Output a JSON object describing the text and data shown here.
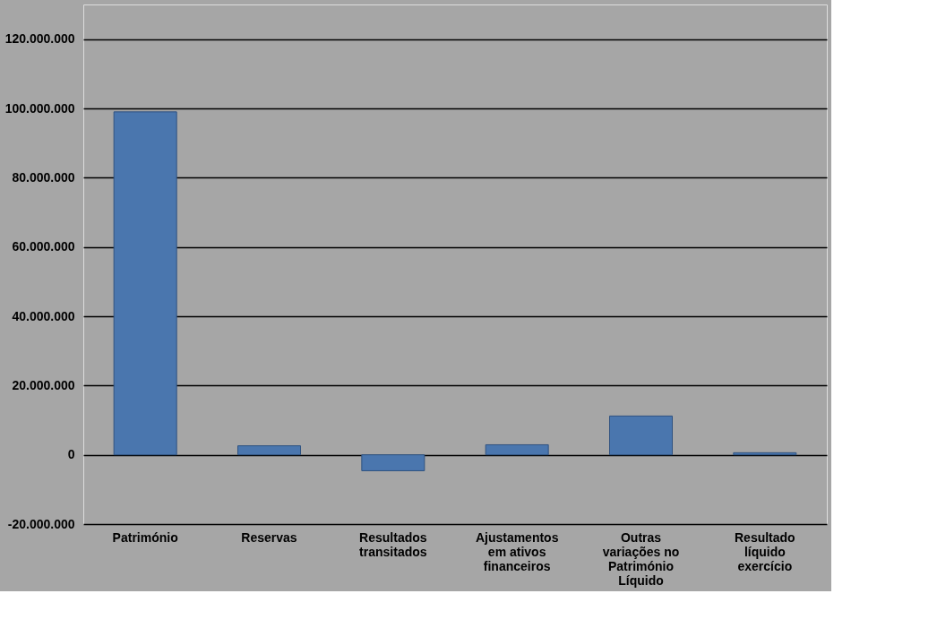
{
  "chart_data": {
    "type": "bar",
    "categories": [
      "Património",
      "Reservas",
      "Resultados transitados",
      "Ajustamentos em ativos financeiros",
      "Outras variações no Património Líquido",
      "Resultado líquido exercício"
    ],
    "values": [
      99000000,
      2600000,
      -4600000,
      2900000,
      11200000,
      600000
    ],
    "color": "#4a76ae",
    "ylim": [
      -20000000,
      130000000
    ],
    "yticks": [
      {
        "value": -20000000,
        "label": "-20.000.000"
      },
      {
        "value": 0,
        "label": "0"
      },
      {
        "value": 20000000,
        "label": "20.000.000"
      },
      {
        "value": 40000000,
        "label": "40.000.000"
      },
      {
        "value": 60000000,
        "label": "60.000.000"
      },
      {
        "value": 80000000,
        "label": "80.000.000"
      },
      {
        "value": 100000000,
        "label": "100.000.000"
      },
      {
        "value": 120000000,
        "label": "120.000.000"
      }
    ],
    "grid": "y"
  }
}
